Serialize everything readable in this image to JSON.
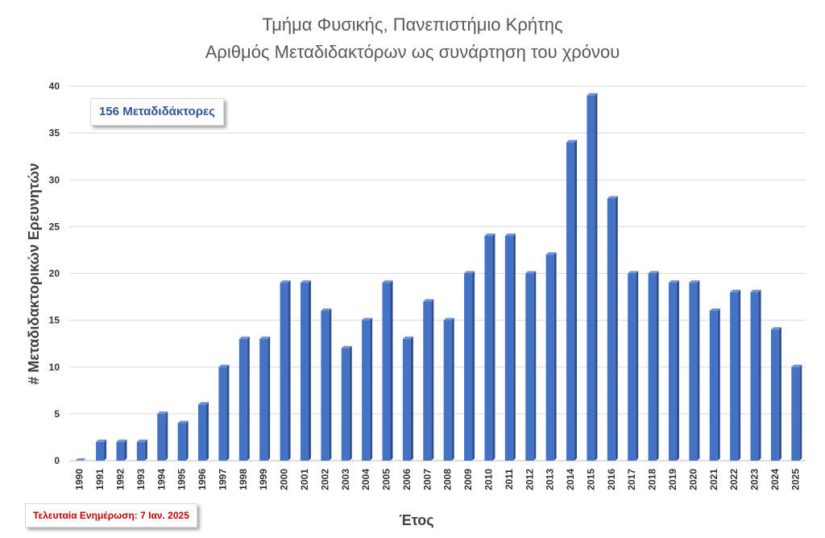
{
  "chart_data": {
    "type": "bar",
    "title": "Τμήμα Φυσικής, Πανεπιστήμιο Κρήτης",
    "subtitle": "Αριθμός Μεταδιδακτόρων ως συνάρτηση του χρόνου",
    "xlabel": "Έτος",
    "ylabel": "# Μεταδιδακτορικών Ερευνητών",
    "categories": [
      "1990",
      "1991",
      "1992",
      "1993",
      "1994",
      "1995",
      "1996",
      "1997",
      "1998",
      "1999",
      "2000",
      "2001",
      "2002",
      "2003",
      "2004",
      "2005",
      "2006",
      "2007",
      "2008",
      "2009",
      "2010",
      "2011",
      "2012",
      "2013",
      "2014",
      "2015",
      "2016",
      "2017",
      "2018",
      "2019",
      "2020",
      "2021",
      "2022",
      "2023",
      "2024",
      "2025"
    ],
    "values": [
      0,
      2,
      2,
      2,
      5,
      4,
      6,
      10,
      13,
      13,
      19,
      19,
      16,
      12,
      15,
      19,
      13,
      17,
      15,
      20,
      24,
      24,
      20,
      22,
      34,
      39,
      28,
      20,
      20,
      19,
      19,
      16,
      18,
      18,
      14,
      10
    ],
    "ylim": [
      0,
      40
    ],
    "yticks": [
      0,
      5,
      10,
      15,
      20,
      25,
      30,
      35,
      40
    ],
    "grid": true,
    "bar_color": "#4472c4",
    "annotations": [
      {
        "text": "156 Μεταδιδάκτορες",
        "color": "#2f5597"
      },
      {
        "text": "Τελευταία Ενημέρωση: 7 Ιαν. 2025",
        "color": "#c00000"
      }
    ]
  }
}
